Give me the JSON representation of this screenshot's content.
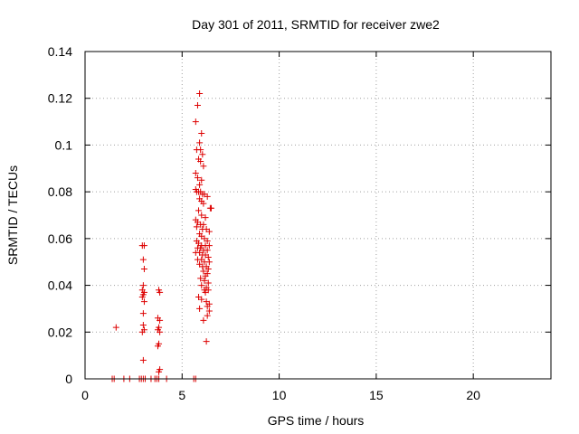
{
  "chart_data": {
    "type": "scatter",
    "title": "Day 301 of 2011, SRMTID for receiver zwe2",
    "xlabel": "GPS time / hours",
    "ylabel": "SRMTID / TECUs",
    "xlim": [
      0,
      24
    ],
    "ylim": [
      0,
      0.14
    ],
    "xticks": [
      0,
      5,
      10,
      15,
      20
    ],
    "xtick_labels": [
      "0",
      "5",
      "10",
      "15",
      "20"
    ],
    "yticks": [
      0,
      0.02,
      0.04,
      0.06,
      0.08,
      0.1,
      0.12,
      0.14
    ],
    "ytick_labels": [
      "0",
      "0.02",
      "0.04",
      "0.06",
      "0.08",
      "0.1",
      "0.12",
      "0.14"
    ],
    "grid": true,
    "marker": "plus",
    "color": "#dd0000",
    "series": [
      {
        "points": [
          [
            1.4,
            0
          ],
          [
            1.5,
            0
          ],
          [
            1.6,
            0.022
          ],
          [
            2.0,
            0
          ],
          [
            2.3,
            0
          ],
          [
            2.8,
            0
          ],
          [
            2.9,
            0
          ],
          [
            3.0,
            0
          ],
          [
            3.1,
            0
          ],
          [
            3.4,
            0
          ],
          [
            3.6,
            0
          ],
          [
            3.7,
            0
          ],
          [
            3.8,
            0
          ],
          [
            4.2,
            0
          ],
          [
            5.6,
            0
          ],
          [
            5.7,
            0
          ],
          [
            2.95,
            0.057
          ],
          [
            3.05,
            0.057
          ],
          [
            3.0,
            0.051
          ],
          [
            3.05,
            0.047
          ],
          [
            3.0,
            0.04
          ],
          [
            2.95,
            0.038
          ],
          [
            3.05,
            0.037
          ],
          [
            3.0,
            0.036
          ],
          [
            2.95,
            0.035
          ],
          [
            3.05,
            0.033
          ],
          [
            3.0,
            0.028
          ],
          [
            3.0,
            0.023
          ],
          [
            3.05,
            0.021
          ],
          [
            2.95,
            0.02
          ],
          [
            3.0,
            0.008
          ],
          [
            3.8,
            0.038
          ],
          [
            3.85,
            0.037
          ],
          [
            3.75,
            0.026
          ],
          [
            3.85,
            0.025
          ],
          [
            3.8,
            0.022
          ],
          [
            3.75,
            0.021
          ],
          [
            3.85,
            0.02
          ],
          [
            3.8,
            0.015
          ],
          [
            3.75,
            0.014
          ],
          [
            3.85,
            0.004
          ],
          [
            3.8,
            0.003
          ],
          [
            5.9,
            0.122
          ],
          [
            5.8,
            0.117
          ],
          [
            5.7,
            0.11
          ],
          [
            6.0,
            0.105
          ],
          [
            5.9,
            0.101
          ],
          [
            5.95,
            0.098
          ],
          [
            5.75,
            0.098
          ],
          [
            6.05,
            0.096
          ],
          [
            5.85,
            0.094
          ],
          [
            5.95,
            0.093
          ],
          [
            6.1,
            0.091
          ],
          [
            5.7,
            0.088
          ],
          [
            5.8,
            0.086
          ],
          [
            6.0,
            0.085
          ],
          [
            5.9,
            0.083
          ],
          [
            5.7,
            0.081
          ],
          [
            5.75,
            0.08
          ],
          [
            5.85,
            0.08
          ],
          [
            5.95,
            0.08
          ],
          [
            6.05,
            0.079
          ],
          [
            6.15,
            0.079
          ],
          [
            6.3,
            0.078
          ],
          [
            5.9,
            0.077
          ],
          [
            6.0,
            0.076
          ],
          [
            6.1,
            0.075
          ],
          [
            6.45,
            0.073
          ],
          [
            6.5,
            0.073
          ],
          [
            5.85,
            0.072
          ],
          [
            6.0,
            0.07
          ],
          [
            6.2,
            0.069
          ],
          [
            5.7,
            0.068
          ],
          [
            5.8,
            0.067
          ],
          [
            5.95,
            0.066
          ],
          [
            6.1,
            0.066
          ],
          [
            5.75,
            0.065
          ],
          [
            6.05,
            0.064
          ],
          [
            6.25,
            0.064
          ],
          [
            6.4,
            0.063
          ],
          [
            5.9,
            0.062
          ],
          [
            6.0,
            0.061
          ],
          [
            6.15,
            0.06
          ],
          [
            6.3,
            0.059
          ],
          [
            5.75,
            0.059
          ],
          [
            5.85,
            0.058
          ],
          [
            6.0,
            0.057
          ],
          [
            6.2,
            0.057
          ],
          [
            6.4,
            0.057
          ],
          [
            5.8,
            0.056
          ],
          [
            5.95,
            0.056
          ],
          [
            6.1,
            0.055
          ],
          [
            6.3,
            0.055
          ],
          [
            5.7,
            0.054
          ],
          [
            5.9,
            0.054
          ],
          [
            6.05,
            0.053
          ],
          [
            6.2,
            0.053
          ],
          [
            6.35,
            0.052
          ],
          [
            5.8,
            0.051
          ],
          [
            6.0,
            0.051
          ],
          [
            6.15,
            0.05
          ],
          [
            6.4,
            0.05
          ],
          [
            5.9,
            0.049
          ],
          [
            6.05,
            0.048
          ],
          [
            6.25,
            0.048
          ],
          [
            6.35,
            0.047
          ],
          [
            6.1,
            0.046
          ],
          [
            6.3,
            0.045
          ],
          [
            6.2,
            0.044
          ],
          [
            5.95,
            0.043
          ],
          [
            6.15,
            0.042
          ],
          [
            6.35,
            0.041
          ],
          [
            6.0,
            0.04
          ],
          [
            6.25,
            0.039
          ],
          [
            6.15,
            0.038
          ],
          [
            6.35,
            0.038
          ],
          [
            6.2,
            0.037
          ],
          [
            5.85,
            0.035
          ],
          [
            6.0,
            0.034
          ],
          [
            6.25,
            0.033
          ],
          [
            6.4,
            0.032
          ],
          [
            6.3,
            0.031
          ],
          [
            5.9,
            0.03
          ],
          [
            6.4,
            0.029
          ],
          [
            6.3,
            0.027
          ],
          [
            6.1,
            0.025
          ],
          [
            6.25,
            0.016
          ]
        ]
      }
    ]
  }
}
